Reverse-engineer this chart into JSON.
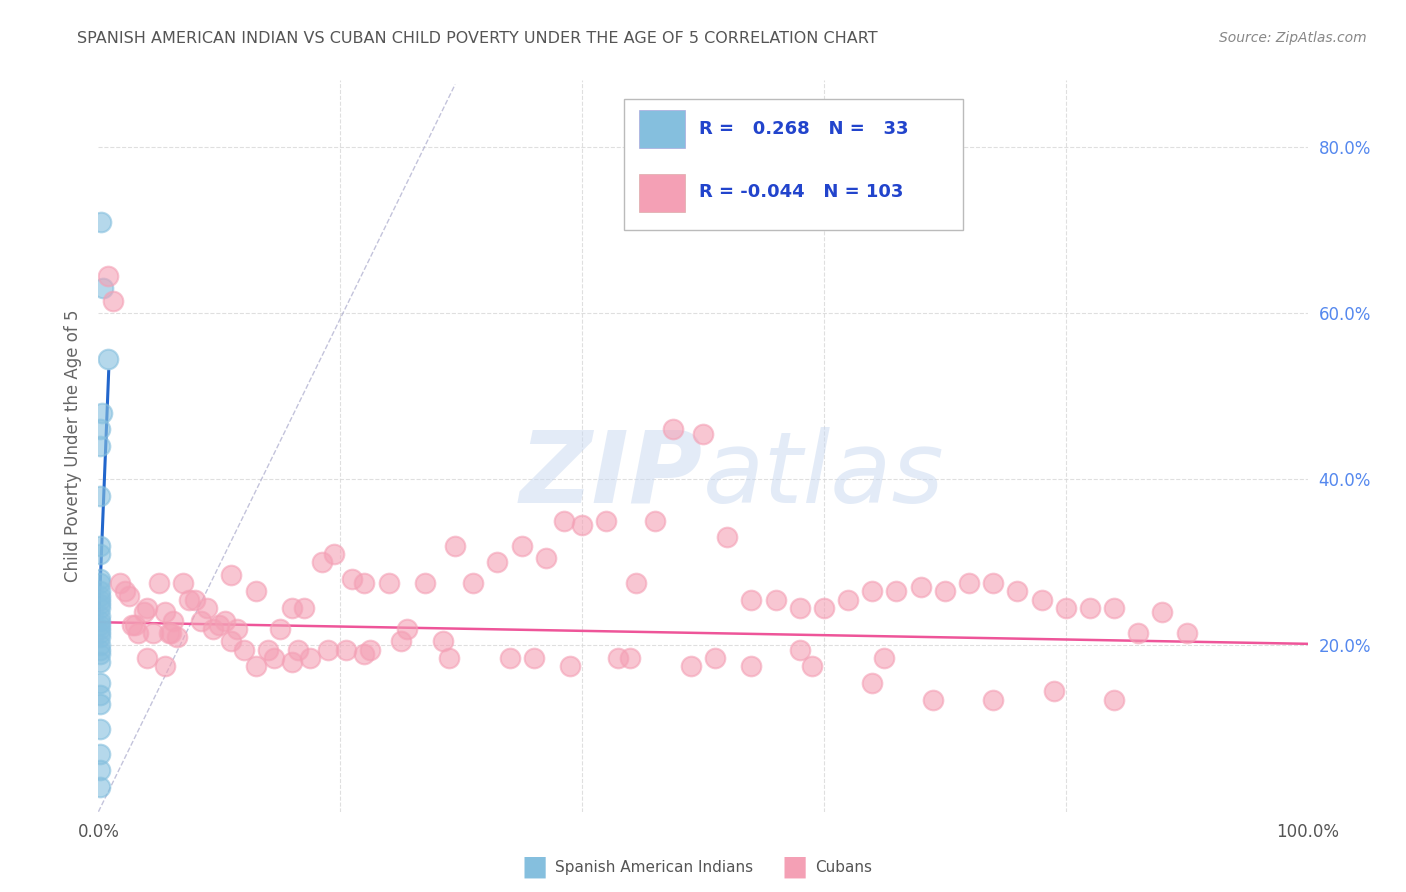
{
  "title": "SPANISH AMERICAN INDIAN VS CUBAN CHILD POVERTY UNDER THE AGE OF 5 CORRELATION CHART",
  "source": "Source: ZipAtlas.com",
  "ylabel": "Child Poverty Under the Age of 5",
  "xlim": [
    0,
    1.0
  ],
  "ylim": [
    0,
    0.88
  ],
  "r_blue": 0.268,
  "n_blue": 33,
  "r_pink": -0.044,
  "n_pink": 103,
  "background_color": "#ffffff",
  "grid_color": "#d8d8d8",
  "title_color": "#555555",
  "legend_label_blue": "Spanish American Indians",
  "legend_label_pink": "Cubans",
  "blue_scatter_color": "#85BFDE",
  "pink_scatter_color": "#F4A0B5",
  "blue_line_color": "#2266CC",
  "pink_line_color": "#EE5599",
  "dashed_line_color": "#AAAACC",
  "watermark_color": "#C8D8F0",
  "blue_points_x": [
    0.002,
    0.004,
    0.008,
    0.003,
    0.001,
    0.001,
    0.001,
    0.001,
    0.001,
    0.001,
    0.001,
    0.001,
    0.001,
    0.001,
    0.001,
    0.001,
    0.001,
    0.001,
    0.001,
    0.001,
    0.001,
    0.001,
    0.001,
    0.001,
    0.001,
    0.001,
    0.001,
    0.001,
    0.001,
    0.001,
    0.001,
    0.001,
    0.001
  ],
  "blue_points_y": [
    0.71,
    0.63,
    0.545,
    0.48,
    0.46,
    0.44,
    0.38,
    0.32,
    0.31,
    0.28,
    0.275,
    0.265,
    0.26,
    0.255,
    0.25,
    0.245,
    0.235,
    0.23,
    0.225,
    0.22,
    0.215,
    0.21,
    0.2,
    0.195,
    0.19,
    0.18,
    0.155,
    0.14,
    0.13,
    0.1,
    0.07,
    0.05,
    0.03
  ],
  "pink_points_x": [
    0.008,
    0.012,
    0.018,
    0.022,
    0.025,
    0.028,
    0.03,
    0.033,
    0.038,
    0.04,
    0.045,
    0.05,
    0.055,
    0.058,
    0.062,
    0.065,
    0.07,
    0.075,
    0.08,
    0.085,
    0.09,
    0.095,
    0.1,
    0.105,
    0.11,
    0.115,
    0.12,
    0.13,
    0.14,
    0.15,
    0.16,
    0.17,
    0.185,
    0.195,
    0.21,
    0.22,
    0.24,
    0.255,
    0.27,
    0.295,
    0.31,
    0.33,
    0.35,
    0.37,
    0.385,
    0.4,
    0.42,
    0.445,
    0.46,
    0.475,
    0.5,
    0.52,
    0.54,
    0.56,
    0.58,
    0.6,
    0.62,
    0.64,
    0.66,
    0.68,
    0.7,
    0.72,
    0.74,
    0.76,
    0.78,
    0.8,
    0.82,
    0.84,
    0.86,
    0.88,
    0.9,
    0.04,
    0.055,
    0.13,
    0.145,
    0.16,
    0.175,
    0.19,
    0.205,
    0.22,
    0.25,
    0.29,
    0.34,
    0.39,
    0.44,
    0.49,
    0.54,
    0.59,
    0.64,
    0.69,
    0.74,
    0.79,
    0.84,
    0.06,
    0.11,
    0.165,
    0.225,
    0.285,
    0.36,
    0.43,
    0.51,
    0.58,
    0.65
  ],
  "pink_points_y": [
    0.645,
    0.615,
    0.275,
    0.265,
    0.26,
    0.225,
    0.225,
    0.215,
    0.24,
    0.245,
    0.215,
    0.275,
    0.24,
    0.215,
    0.23,
    0.21,
    0.275,
    0.255,
    0.255,
    0.23,
    0.245,
    0.22,
    0.225,
    0.23,
    0.285,
    0.22,
    0.195,
    0.265,
    0.195,
    0.22,
    0.245,
    0.245,
    0.3,
    0.31,
    0.28,
    0.275,
    0.275,
    0.22,
    0.275,
    0.32,
    0.275,
    0.3,
    0.32,
    0.305,
    0.35,
    0.345,
    0.35,
    0.275,
    0.35,
    0.46,
    0.455,
    0.33,
    0.255,
    0.255,
    0.245,
    0.245,
    0.255,
    0.265,
    0.265,
    0.27,
    0.265,
    0.275,
    0.275,
    0.265,
    0.255,
    0.245,
    0.245,
    0.245,
    0.215,
    0.24,
    0.215,
    0.185,
    0.175,
    0.175,
    0.185,
    0.18,
    0.185,
    0.195,
    0.195,
    0.19,
    0.205,
    0.185,
    0.185,
    0.175,
    0.185,
    0.175,
    0.175,
    0.175,
    0.155,
    0.135,
    0.135,
    0.145,
    0.135,
    0.215,
    0.205,
    0.195,
    0.195,
    0.205,
    0.185,
    0.185,
    0.185,
    0.195,
    0.185
  ],
  "blue_line_x": [
    0.0,
    0.0085
  ],
  "blue_line_y": [
    0.22,
    0.53
  ],
  "pink_line_x": [
    0.0,
    1.0
  ],
  "pink_line_y": [
    0.228,
    0.202
  ],
  "ref_line_x": [
    0.0,
    0.295
  ],
  "ref_line_y": [
    0.0,
    0.875
  ]
}
